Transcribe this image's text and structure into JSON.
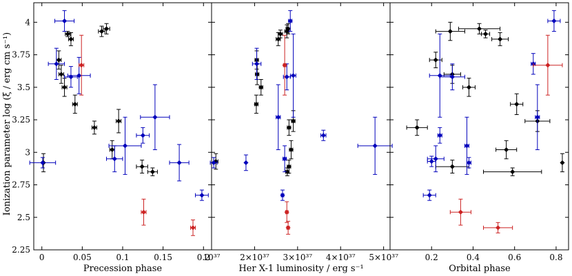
{
  "chart_data": [
    {
      "type": "scatter",
      "xlabel": "Precession phase",
      "ylabel": "Ionization parameter log (ξ / erg cm s⁻¹)",
      "xlim": [
        -0.01,
        0.21
      ],
      "ylim": [
        2.25,
        4.15
      ],
      "x_ticks": [
        {
          "v": 0,
          "label": "0"
        },
        {
          "v": 0.05,
          "label": "0.05"
        },
        {
          "v": 0.1,
          "label": "0.1"
        },
        {
          "v": 0.15,
          "label": "0.15"
        },
        {
          "v": 0.2,
          "label": "0.2"
        }
      ],
      "y_ticks": [
        {
          "v": 2.25,
          "label": "2.25"
        },
        {
          "v": 2.5,
          "label": "2.5"
        },
        {
          "v": 2.75,
          "label": "2.75"
        },
        {
          "v": 3,
          "label": "3"
        },
        {
          "v": 3.25,
          "label": "3.25"
        },
        {
          "v": 3.5,
          "label": "3.5"
        },
        {
          "v": 3.75,
          "label": "3.75"
        },
        {
          "v": 4,
          "label": "4"
        }
      ],
      "series": [
        {
          "color": "#000000",
          "points": [
            {
              "x": 0.002,
              "y": 2.92,
              "xerr": 0,
              "yerr": 0.07
            },
            {
              "x": 0.021,
              "y": 3.71,
              "xerr": 0.003,
              "yerr": 0.07
            },
            {
              "x": 0.024,
              "y": 3.6,
              "xerr": 0.003,
              "yerr": 0.07
            },
            {
              "x": 0.028,
              "y": 3.5,
              "xerr": 0.003,
              "yerr": 0.07
            },
            {
              "x": 0.032,
              "y": 3.91,
              "xerr": 0.003,
              "yerr": 0.02
            },
            {
              "x": 0.036,
              "y": 3.87,
              "xerr": 0.003,
              "yerr": 0.05
            },
            {
              "x": 0.041,
              "y": 3.37,
              "xerr": 0.003,
              "yerr": 0.07
            },
            {
              "x": 0.065,
              "y": 3.19,
              "xerr": 0.003,
              "yerr": 0.05
            },
            {
              "x": 0.074,
              "y": 3.93,
              "xerr": 0.004,
              "yerr": 0.04
            },
            {
              "x": 0.08,
              "y": 3.95,
              "xerr": 0.004,
              "yerr": 0.04
            },
            {
              "x": 0.087,
              "y": 3.02,
              "xerr": 0.003,
              "yerr": 0.07
            },
            {
              "x": 0.095,
              "y": 3.24,
              "xerr": 0.003,
              "yerr": 0.09
            },
            {
              "x": 0.124,
              "y": 2.89,
              "xerr": 0.007,
              "yerr": 0.05
            },
            {
              "x": 0.137,
              "y": 2.85,
              "xerr": 0.006,
              "yerr": 0.03
            }
          ]
        },
        {
          "color": "#0000bb",
          "points": [
            {
              "x": 0.001,
              "y": 2.92,
              "xerr": 0.016,
              "yerr": 0.04
            },
            {
              "x": 0.018,
              "y": 3.68,
              "xerr": 0.01,
              "yerr": 0.12
            },
            {
              "x": 0.028,
              "y": 4.01,
              "xerr": 0.012,
              "yerr": 0.08
            },
            {
              "x": 0.036,
              "y": 3.58,
              "xerr": 0.008,
              "yerr": 0.08
            },
            {
              "x": 0.046,
              "y": 3.59,
              "xerr": 0.014,
              "yerr": 0.14
            },
            {
              "x": 0.09,
              "y": 2.95,
              "xerr": 0.01,
              "yerr": 0.1
            },
            {
              "x": 0.103,
              "y": 3.05,
              "xerr": 0.02,
              "yerr": 0.22
            },
            {
              "x": 0.125,
              "y": 3.13,
              "xerr": 0.008,
              "yerr": 0.06
            },
            {
              "x": 0.14,
              "y": 3.27,
              "xerr": 0.018,
              "yerr": 0.25
            },
            {
              "x": 0.17,
              "y": 2.92,
              "xerr": 0.012,
              "yerr": 0.14
            },
            {
              "x": 0.198,
              "y": 2.67,
              "xerr": 0.008,
              "yerr": 0.04
            }
          ]
        },
        {
          "color": "#cc2222",
          "points": [
            {
              "x": 0.049,
              "y": 3.67,
              "xerr": 0.003,
              "yerr": 0.23
            },
            {
              "x": 0.126,
              "y": 2.54,
              "xerr": 0.003,
              "yerr": 0.1
            },
            {
              "x": 0.187,
              "y": 2.42,
              "xerr": 0.003,
              "yerr": 0.06
            }
          ]
        }
      ]
    },
    {
      "type": "scatter",
      "xlabel": "Her X-1 luminosity / erg s⁻¹",
      "ylabel": "",
      "xlim": [
        1e+37,
        5.15e+37
      ],
      "ylim": [
        2.25,
        4.15
      ],
      "x_ticks": [
        {
          "v": 1e+37,
          "label": "10³⁷"
        },
        {
          "v": 2e+37,
          "label": "2×10³⁷"
        },
        {
          "v": 3e+37,
          "label": "3×10³⁷"
        },
        {
          "v": 4e+37,
          "label": "4×10³⁷"
        },
        {
          "v": 5e+37,
          "label": "5×10³⁷"
        }
      ],
      "y_ticks": [
        {
          "v": 2.25
        },
        {
          "v": 2.5
        },
        {
          "v": 2.75
        },
        {
          "v": 3
        },
        {
          "v": 3.25
        },
        {
          "v": 3.5
        },
        {
          "v": 3.75
        },
        {
          "v": 4
        }
      ],
      "series": [
        {
          "color": "#000000",
          "points": [
            {
              "x": 1.1e+37,
              "y": 2.93,
              "xerr": 5e+35,
              "yerr": 0.06
            },
            {
              "x": 2.05e+37,
              "y": 3.71,
              "xerr": 4e+35,
              "yerr": 0.07
            },
            {
              "x": 2.06e+37,
              "y": 3.6,
              "xerr": 4e+35,
              "yerr": 0.08
            },
            {
              "x": 2.04e+37,
              "y": 3.37,
              "xerr": 4e+35,
              "yerr": 0.07
            },
            {
              "x": 2.15e+37,
              "y": 3.5,
              "xerr": 4e+35,
              "yerr": 0.06
            },
            {
              "x": 2.55e+37,
              "y": 3.87,
              "xerr": 5e+35,
              "yerr": 0.05
            },
            {
              "x": 2.6e+37,
              "y": 3.91,
              "xerr": 5e+35,
              "yerr": 0.03
            },
            {
              "x": 2.75e+37,
              "y": 3.93,
              "xerr": 5e+35,
              "yerr": 0.05
            },
            {
              "x": 2.78e+37,
              "y": 3.95,
              "xerr": 5e+35,
              "yerr": 0.04
            },
            {
              "x": 2.8e+37,
              "y": 3.19,
              "xerr": 4e+35,
              "yerr": 0.06
            },
            {
              "x": 2.9e+37,
              "y": 3.24,
              "xerr": 4e+35,
              "yerr": 0.08
            },
            {
              "x": 2.85e+37,
              "y": 3.02,
              "xerr": 4e+35,
              "yerr": 0.07
            },
            {
              "x": 2.8e+37,
              "y": 2.89,
              "xerr": 4e+35,
              "yerr": 0.05
            },
            {
              "x": 2.76e+37,
              "y": 2.85,
              "xerr": 4e+35,
              "yerr": 0.03
            }
          ]
        },
        {
          "color": "#0000bb",
          "points": [
            {
              "x": 1.05e+37,
              "y": 2.92,
              "xerr": 8e+35,
              "yerr": 0.04
            },
            {
              "x": 1.8e+37,
              "y": 2.92,
              "xerr": 0.0,
              "yerr": 0.06
            },
            {
              "x": 2.05e+37,
              "y": 3.68,
              "xerr": 1e+36,
              "yerr": 0.12
            },
            {
              "x": 2.55e+37,
              "y": 3.27,
              "xerr": 5e+35,
              "yerr": 0.25
            },
            {
              "x": 2.65e+37,
              "y": 2.67,
              "xerr": 3e+35,
              "yerr": 0.04
            },
            {
              "x": 2.7e+37,
              "y": 2.95,
              "xerr": 4e+35,
              "yerr": 0.1
            },
            {
              "x": 2.75e+37,
              "y": 3.58,
              "xerr": 8e+35,
              "yerr": 0.1
            },
            {
              "x": 2.83e+37,
              "y": 4.01,
              "xerr": 4e+35,
              "yerr": 0.08
            },
            {
              "x": 2.9e+37,
              "y": 3.59,
              "xerr": 6e+35,
              "yerr": 0.32
            },
            {
              "x": 3.6e+37,
              "y": 3.13,
              "xerr": 6e+35,
              "yerr": 0.04
            },
            {
              "x": 4.8e+37,
              "y": 3.05,
              "xerr": 4e+36,
              "yerr": 0.22
            }
          ]
        },
        {
          "color": "#cc2222",
          "points": [
            {
              "x": 2.7e+37,
              "y": 3.67,
              "xerr": 3e+35,
              "yerr": 0.23
            },
            {
              "x": 2.75e+37,
              "y": 2.54,
              "xerr": 3e+35,
              "yerr": 0.08
            },
            {
              "x": 2.78e+37,
              "y": 2.42,
              "xerr": 3e+35,
              "yerr": 0.05
            }
          ]
        }
      ]
    },
    {
      "type": "scatter",
      "xlabel": "Orbital phase",
      "ylabel": "",
      "xlim": [
        0.0,
        0.86
      ],
      "ylim": [
        2.25,
        4.15
      ],
      "x_ticks": [
        {
          "v": 0.2,
          "label": "0.2"
        },
        {
          "v": 0.4,
          "label": "0.4"
        },
        {
          "v": 0.6,
          "label": "0.6"
        },
        {
          "v": 0.8,
          "label": "0.8"
        }
      ],
      "y_ticks": [
        {
          "v": 2.25
        },
        {
          "v": 2.5
        },
        {
          "v": 2.75
        },
        {
          "v": 3
        },
        {
          "v": 3.25
        },
        {
          "v": 3.5
        },
        {
          "v": 3.75
        },
        {
          "v": 4
        }
      ],
      "series": [
        {
          "color": "#000000",
          "points": [
            {
              "x": 0.13,
              "y": 3.19,
              "xerr": 0.05,
              "yerr": 0.06
            },
            {
              "x": 0.22,
              "y": 3.71,
              "xerr": 0.03,
              "yerr": 0.06
            },
            {
              "x": 0.29,
              "y": 3.93,
              "xerr": 0.07,
              "yerr": 0.07
            },
            {
              "x": 0.3,
              "y": 3.6,
              "xerr": 0.04,
              "yerr": 0.07
            },
            {
              "x": 0.3,
              "y": 2.89,
              "xerr": 0.08,
              "yerr": 0.05
            },
            {
              "x": 0.38,
              "y": 3.5,
              "xerr": 0.03,
              "yerr": 0.07
            },
            {
              "x": 0.43,
              "y": 3.95,
              "xerr": 0.1,
              "yerr": 0.04
            },
            {
              "x": 0.46,
              "y": 3.91,
              "xerr": 0.02,
              "yerr": 0.03
            },
            {
              "x": 0.53,
              "y": 3.87,
              "xerr": 0.04,
              "yerr": 0.05
            },
            {
              "x": 0.56,
              "y": 3.02,
              "xerr": 0.05,
              "yerr": 0.07
            },
            {
              "x": 0.59,
              "y": 2.85,
              "xerr": 0.14,
              "yerr": 0.03
            },
            {
              "x": 0.61,
              "y": 3.37,
              "xerr": 0.03,
              "yerr": 0.08
            },
            {
              "x": 0.71,
              "y": 3.24,
              "xerr": 0.06,
              "yerr": 0.08
            },
            {
              "x": 0.83,
              "y": 2.92,
              "xerr": 0.0,
              "yerr": 0.07
            }
          ]
        },
        {
          "color": "#0000bb",
          "points": [
            {
              "x": 0.19,
              "y": 2.67,
              "xerr": 0.03,
              "yerr": 0.04
            },
            {
              "x": 0.22,
              "y": 2.95,
              "xerr": 0.04,
              "yerr": 0.1
            },
            {
              "x": 0.24,
              "y": 3.59,
              "xerr": 0.05,
              "yerr": 0.32
            },
            {
              "x": 0.24,
              "y": 3.13,
              "xerr": 0.01,
              "yerr": 0.06
            },
            {
              "x": 0.3,
              "y": 3.58,
              "xerr": 0.06,
              "yerr": 0.1
            },
            {
              "x": 0.37,
              "y": 3.05,
              "xerr": 0.01,
              "yerr": 0.22
            },
            {
              "x": 0.38,
              "y": 2.92,
              "xerr": 0.01,
              "yerr": 0.04
            },
            {
              "x": 0.69,
              "y": 3.68,
              "xerr": 0.01,
              "yerr": 0.08
            },
            {
              "x": 0.71,
              "y": 3.27,
              "xerr": 0.01,
              "yerr": 0.25
            },
            {
              "x": 0.79,
              "y": 4.01,
              "xerr": 0.03,
              "yerr": 0.08
            },
            {
              "x": 0.2,
              "y": 2.93,
              "xerr": 0.02,
              "yerr": 0.04
            }
          ]
        },
        {
          "color": "#cc2222",
          "points": [
            {
              "x": 0.34,
              "y": 2.54,
              "xerr": 0.05,
              "yerr": 0.1
            },
            {
              "x": 0.52,
              "y": 2.42,
              "xerr": 0.07,
              "yerr": 0.04
            },
            {
              "x": 0.76,
              "y": 3.67,
              "xerr": 0.07,
              "yerr": 0.23
            }
          ]
        }
      ]
    }
  ]
}
